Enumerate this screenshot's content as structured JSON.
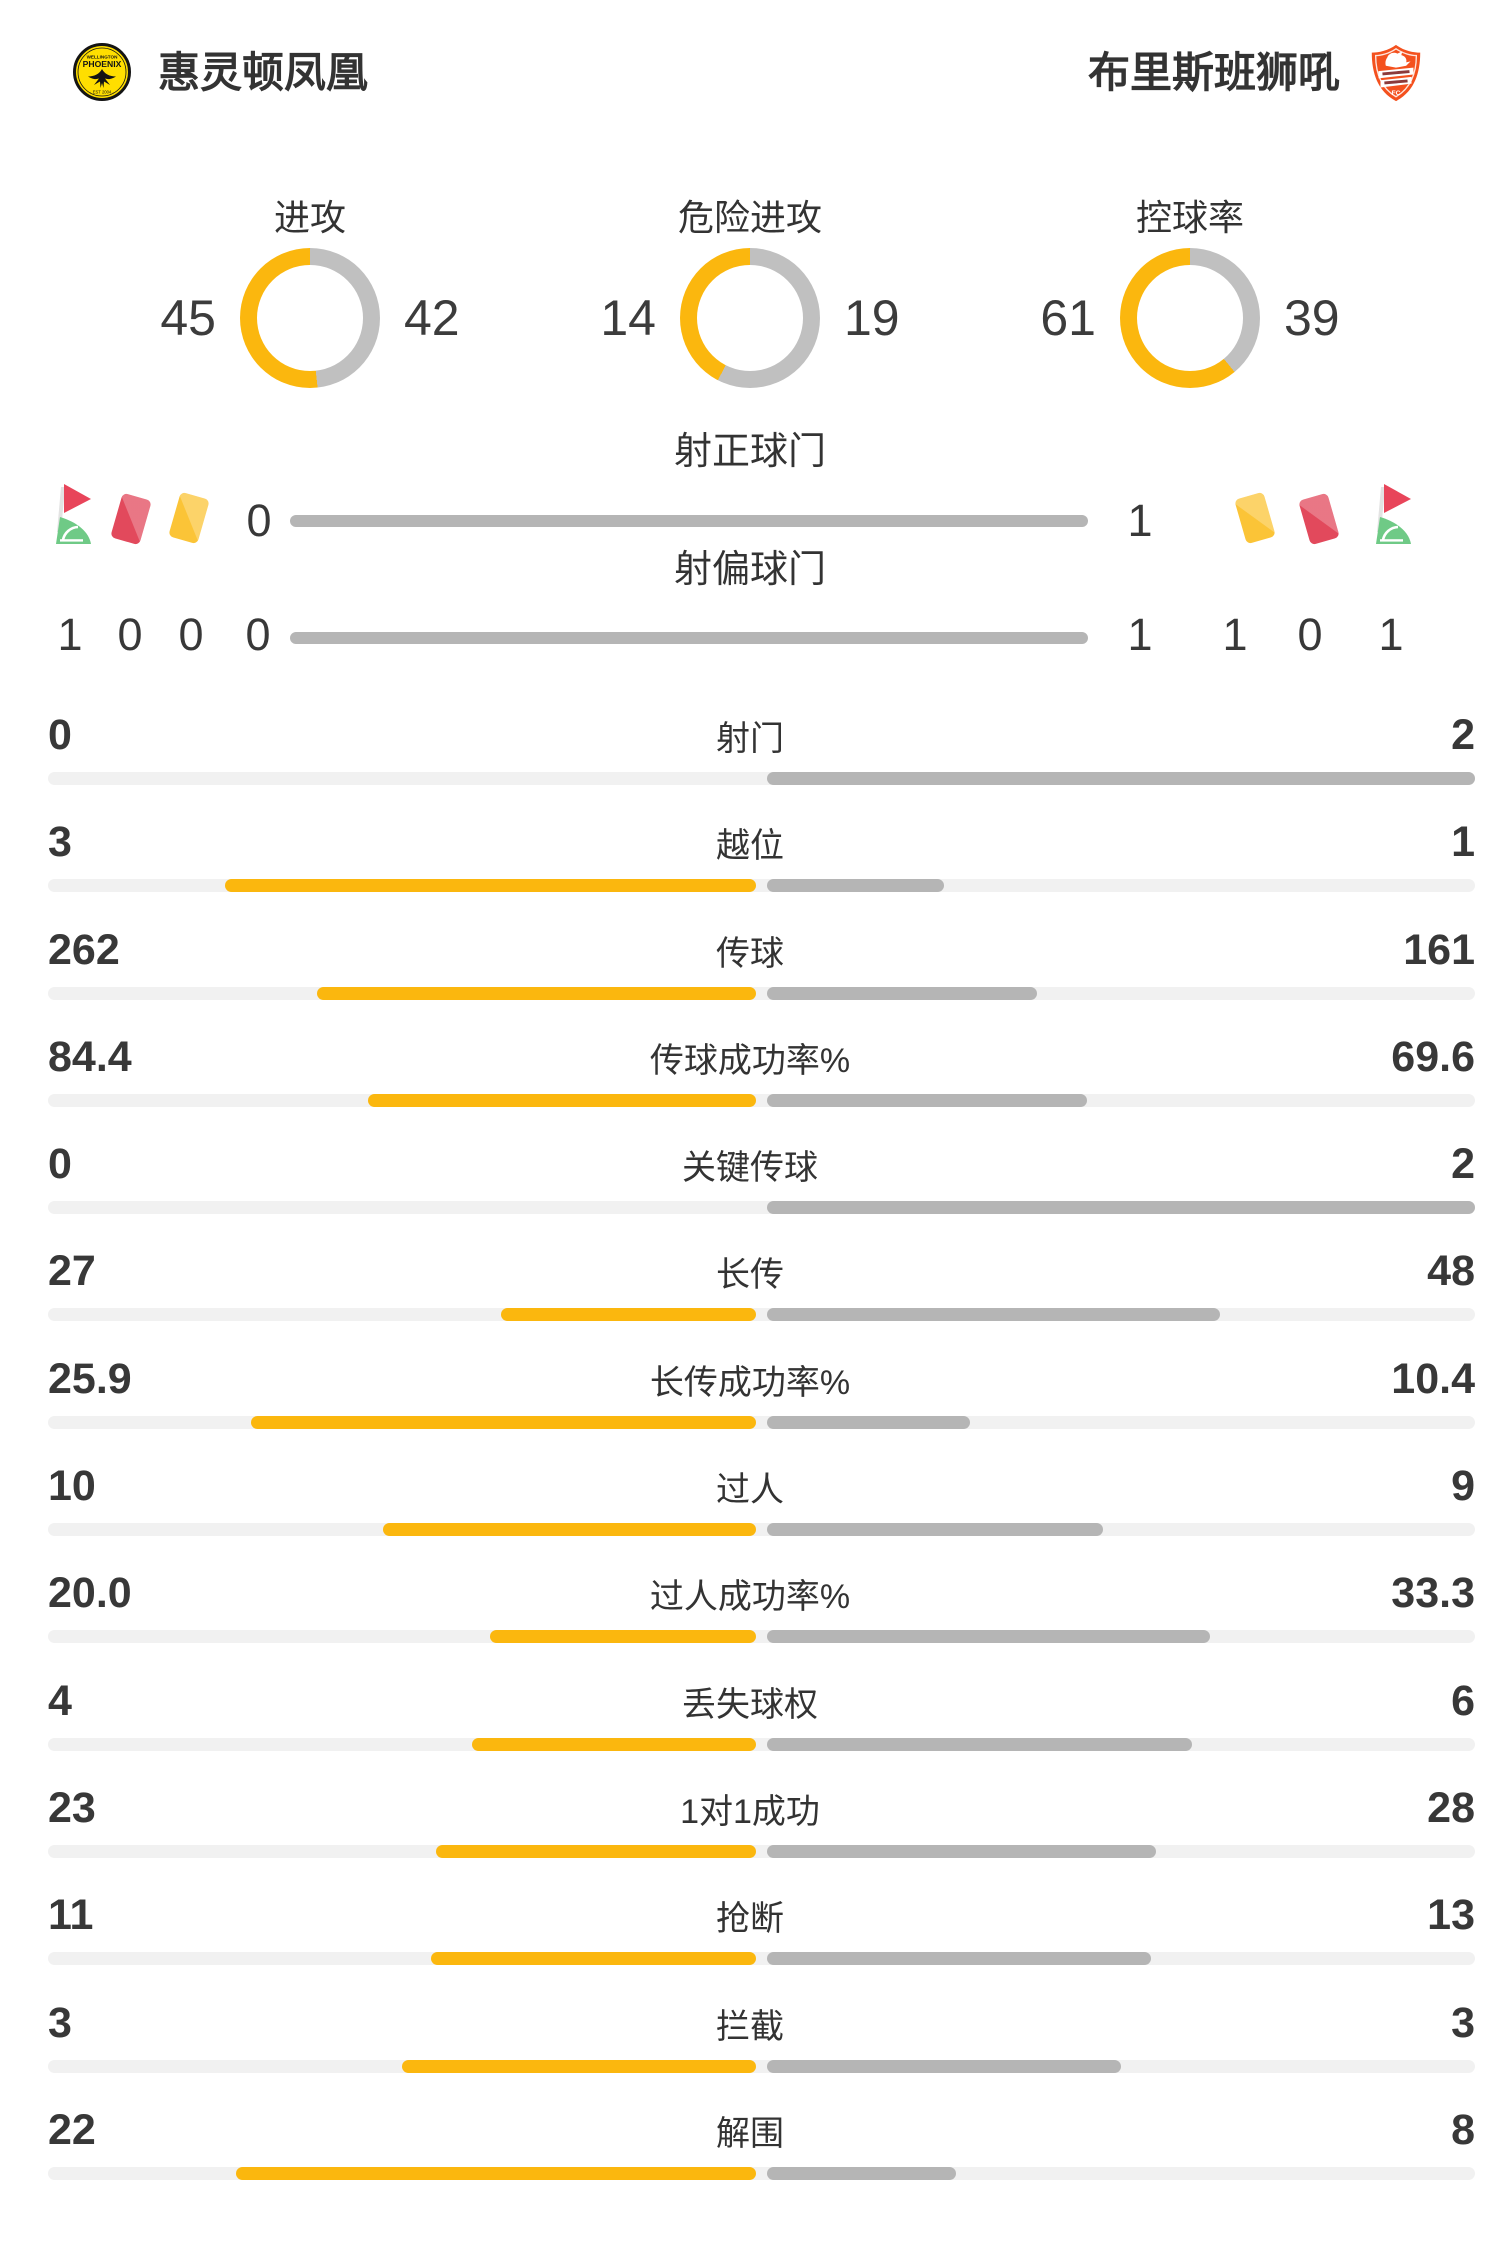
{
  "colors": {
    "accent": "#FBB70E",
    "bar_gray": "#B5B5B5",
    "track": "#F1F1F1",
    "donut_gray": "#C0C0C0",
    "text_dark": "#383838",
    "text_label": "#333333",
    "red_card": "#E2495C",
    "yellow_card": "#FBC437",
    "flag_red": "#E8455A",
    "flag_green": "#6FCA86",
    "flag_pole": "#E3E3E3",
    "crest_home_yellow": "#FFDE00",
    "crest_away_orange": "#F4511E"
  },
  "header": {
    "home": {
      "name": "惠灵顿凤凰",
      "logo": "wellington-phoenix-crest"
    },
    "away": {
      "name": "布里斯班狮吼",
      "logo": "brisbane-roar-crest"
    }
  },
  "donuts": [
    {
      "label": "进攻",
      "home": 45,
      "away": 42
    },
    {
      "label": "危险进攻",
      "home": 14,
      "away": 19
    },
    {
      "label": "控球率",
      "home": 61,
      "away": 39
    }
  ],
  "shot_rows": [
    {
      "label": "射正球门",
      "home": 0,
      "away": 1
    },
    {
      "label": "射偏球门",
      "home": 0,
      "away": 1
    }
  ],
  "cards": {
    "home": {
      "icons": [
        "corner-flag",
        "red-card",
        "yellow-card"
      ],
      "corner": 1,
      "red": 0,
      "yellow": 0
    },
    "away": {
      "icons": [
        "yellow-card",
        "red-card",
        "corner-flag"
      ],
      "yellow": 1,
      "red": 0,
      "corner": 1
    }
  },
  "stats": [
    {
      "label": "射门",
      "home": 0,
      "away": 2
    },
    {
      "label": "越位",
      "home": 3,
      "away": 1
    },
    {
      "label": "传球",
      "home": 262,
      "away": 161
    },
    {
      "label": "传球成功率%",
      "home": "84.4",
      "away": "69.6"
    },
    {
      "label": "关键传球",
      "home": 0,
      "away": 2
    },
    {
      "label": "长传",
      "home": 27,
      "away": 48
    },
    {
      "label": "长传成功率%",
      "home": "25.9",
      "away": "10.4"
    },
    {
      "label": "过人",
      "home": 10,
      "away": 9
    },
    {
      "label": "过人成功率%",
      "home": "20.0",
      "away": "33.3"
    },
    {
      "label": "丢失球权",
      "home": 4,
      "away": 6
    },
    {
      "label": "1对1成功",
      "home": 23,
      "away": 28
    },
    {
      "label": "抢断",
      "home": 11,
      "away": 13
    },
    {
      "label": "拦截",
      "home": 3,
      "away": 3
    },
    {
      "label": "解围",
      "home": 22,
      "away": 8
    }
  ]
}
